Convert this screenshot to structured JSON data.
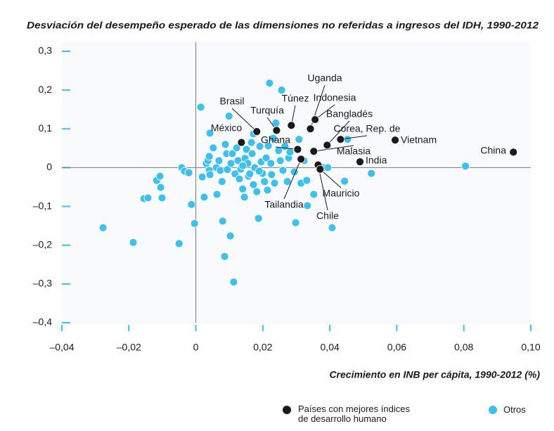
{
  "chart_data": {
    "type": "scatter",
    "title": "Desviación del desempeño esperado de las dimensiones no referidas a ingresos del IDH, 1990-2012",
    "x_label": "Crecimiento en INB per cápita, 1990-2012 (%)",
    "xlim": [
      -0.04,
      0.1
    ],
    "ylim": [
      -0.4,
      0.3
    ],
    "xticks": [
      {
        "value": -0.04,
        "label": "–0,04"
      },
      {
        "value": -0.02,
        "label": "–0,02"
      },
      0,
      {
        "value": 0.02,
        "label": "0,02"
      },
      {
        "value": 0.04,
        "label": "0,04"
      },
      {
        "value": 0.06,
        "label": "0,06"
      },
      {
        "value": 0.08,
        "label": "0,08"
      },
      {
        "value": 0.1,
        "label": "0,10"
      }
    ],
    "yticks": [
      {
        "value": -0.4,
        "label": "–0,4"
      },
      {
        "value": -0.3,
        "label": "–0,3"
      },
      {
        "value": -0.2,
        "label": "–0,2"
      },
      {
        "value": -0.1,
        "label": "–0,1"
      },
      0,
      {
        "value": 0.1,
        "label": "0,1"
      },
      {
        "value": 0.2,
        "label": "0,2"
      },
      {
        "value": 0.3,
        "label": "0,3"
      }
    ],
    "series": [
      {
        "name": "Países con mejores índices de desarrollo humano",
        "color": "#1a1a1a",
        "labels": [
          "México",
          "Brasil",
          "Turquía",
          "Túnez",
          "Ghana",
          "Uganda",
          "Indonesia",
          "Malasia",
          "Bangladés",
          "Corea, Rep. de",
          "Tailandia",
          "Chile",
          "Mauricio",
          "India",
          "Vietnam",
          "China"
        ],
        "x": [
          0.0136,
          0.0182,
          0.0241,
          0.0285,
          0.0304,
          0.0342,
          0.0356,
          0.0352,
          0.0392,
          0.0432,
          0.0314,
          0.0365,
          0.0371,
          0.049,
          0.0595,
          0.0948
        ],
        "values": [
          0.065,
          0.093,
          0.096,
          0.109,
          0.047,
          0.1,
          0.124,
          0.042,
          0.058,
          0.073,
          0.022,
          0.007,
          -0.004,
          0.015,
          0.071,
          0.04
        ]
      },
      {
        "name": "Otros",
        "color": "#3fbfec",
        "x": [
          -0.0277,
          -0.0187,
          -0.0155,
          -0.0143,
          -0.0117,
          -0.0107,
          -0.0105,
          -0.0101,
          -0.005,
          -0.0042,
          -0.0034,
          -0.0021,
          -0.0013,
          -0.0004,
          0.0015,
          0.0019,
          0.0025,
          0.0031,
          0.0036,
          0.004,
          0.0042,
          0.004,
          0.0042,
          0.0052,
          0.0061,
          0.0063,
          0.0069,
          0.0073,
          0.0078,
          0.008,
          0.0086,
          0.0088,
          0.0092,
          0.0094,
          0.0099,
          0.0103,
          0.0105,
          0.0109,
          0.0113,
          0.0117,
          0.0122,
          0.0126,
          0.013,
          0.0134,
          0.014,
          0.0145,
          0.0147,
          0.0151,
          0.0155,
          0.0157,
          0.0161,
          0.0166,
          0.0168,
          0.0172,
          0.0176,
          0.0182,
          0.0187,
          0.0191,
          0.0195,
          0.0199,
          0.0205,
          0.021,
          0.0214,
          0.0216,
          0.022,
          0.0224,
          0.0226,
          0.0231,
          0.0235,
          0.0239,
          0.0247,
          0.0252,
          0.0256,
          0.026,
          0.0266,
          0.0273,
          0.0277,
          0.0281,
          0.0294,
          0.0298,
          0.0308,
          0.0314,
          0.0323,
          0.0331,
          0.0333,
          0.0352,
          0.0382,
          0.0394,
          0.0407,
          0.0444,
          0.0453,
          0.0524,
          0.0805,
          0.0189,
          0.014,
          0.0172
        ],
        "values": [
          -0.155,
          -0.193,
          -0.08,
          -0.078,
          -0.033,
          -0.022,
          -0.051,
          -0.078,
          -0.196,
          0.0,
          -0.009,
          -0.013,
          -0.095,
          -0.144,
          0.156,
          -0.024,
          -0.076,
          0.011,
          0.018,
          0.029,
          0.089,
          -0.007,
          -0.018,
          0.051,
          0.0,
          -0.069,
          0.018,
          -0.007,
          -0.036,
          -0.138,
          -0.229,
          0.06,
          0.036,
          -0.005,
          0.133,
          -0.176,
          0.011,
          0.036,
          -0.295,
          -0.016,
          0.051,
          0.018,
          -0.029,
          -0.004,
          -0.055,
          -0.076,
          0.024,
          0.047,
          0.011,
          -0.022,
          -0.016,
          0.065,
          0.036,
          -0.044,
          0.0,
          -0.062,
          -0.131,
          0.055,
          0.015,
          -0.015,
          -0.036,
          0.025,
          -0.058,
          0.056,
          0.218,
          0.011,
          -0.018,
          0.076,
          -0.04,
          0.115,
          0.044,
          0.018,
          0.2,
          -0.007,
          0.055,
          -0.036,
          0.025,
          0.04,
          -0.011,
          -0.142,
          0.073,
          -0.04,
          0.018,
          -0.033,
          -0.098,
          -0.069,
          0.0,
          0.0,
          -0.155,
          -0.035,
          0.073,
          -0.015,
          0.004,
          -0.009,
          0.005,
          0.087
        ]
      }
    ]
  }
}
